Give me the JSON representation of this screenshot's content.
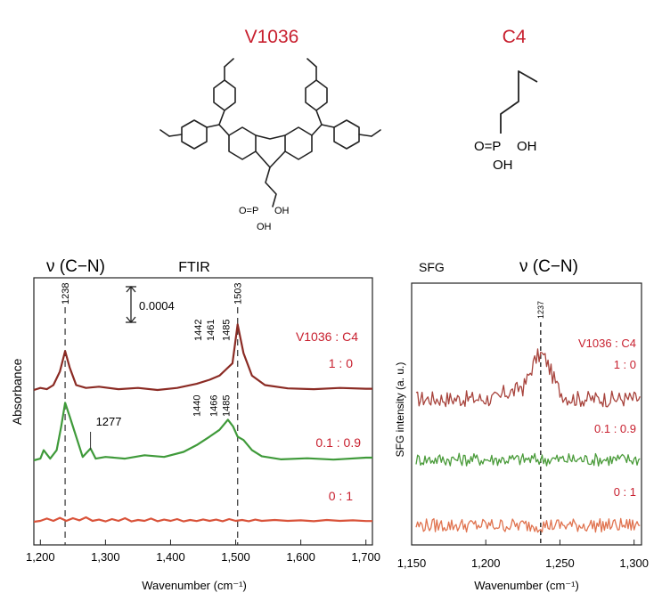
{
  "molecules": {
    "left_label": "V1036",
    "right_label": "C4",
    "left_groups": {
      "po": "O=P",
      "oh1": "OH",
      "oh2": "OH"
    },
    "right_groups": {
      "po": "O=P",
      "oh1": "OH",
      "oh2": "OH"
    }
  },
  "chart_data": [
    {
      "type": "line",
      "title": "FTIR",
      "mode_label": "ν (C−N)",
      "xlabel": "Wavenumber (cm⁻¹)",
      "ylabel": "Absorbance",
      "xlim": [
        1190,
        1710
      ],
      "x_ticks": [
        "1,200",
        "1,300",
        "1,400",
        "1,500",
        "1,600",
        "1,700"
      ],
      "x_tick_values": [
        1200,
        1300,
        1400,
        1500,
        1600,
        1700
      ],
      "scale_bar_label": "0.0004",
      "legend_header": "V1036 : C4",
      "grid": false,
      "colors": {
        "1:0": "#8b2b24",
        "0.1:0.9": "#3f9a3a",
        "0:1": "#d9533a"
      },
      "series": [
        {
          "name": "1 : 0",
          "x": [
            1190,
            1200,
            1210,
            1220,
            1230,
            1238,
            1245,
            1255,
            1270,
            1290,
            1320,
            1350,
            1380,
            1410,
            1440,
            1460,
            1475,
            1485,
            1495,
            1503,
            1512,
            1525,
            1545,
            1580,
            1620,
            1660,
            1700,
            1710
          ],
          "y": [
            0.0,
            0.05,
            0.02,
            0.12,
            0.45,
            0.95,
            0.55,
            0.12,
            0.05,
            0.08,
            0.02,
            0.05,
            0.0,
            0.05,
            0.15,
            0.25,
            0.35,
            0.5,
            0.65,
            1.6,
            0.9,
            0.35,
            0.12,
            0.04,
            0.02,
            0.05,
            0.03,
            0.03
          ]
        },
        {
          "name": "0.1 : 0.9",
          "x": [
            1190,
            1200,
            1205,
            1215,
            1225,
            1232,
            1238,
            1245,
            1255,
            1265,
            1277,
            1285,
            1300,
            1330,
            1360,
            1390,
            1420,
            1440,
            1460,
            1475,
            1488,
            1496,
            1503,
            1512,
            1525,
            1540,
            1570,
            1610,
            1650,
            1700,
            1710
          ],
          "y": [
            0.0,
            0.05,
            0.3,
            0.05,
            0.3,
            1.0,
            1.7,
            1.3,
            0.7,
            0.1,
            0.35,
            0.05,
            0.1,
            0.05,
            0.15,
            0.1,
            0.25,
            0.45,
            0.7,
            0.9,
            1.2,
            1.0,
            0.7,
            0.6,
            0.3,
            0.12,
            0.03,
            0.06,
            0.02,
            0.08,
            0.08
          ]
        },
        {
          "name": "0 : 1",
          "x": [
            1190,
            1200,
            1210,
            1220,
            1230,
            1240,
            1250,
            1260,
            1270,
            1280,
            1290,
            1300,
            1310,
            1320,
            1330,
            1340,
            1350,
            1360,
            1370,
            1380,
            1390,
            1400,
            1410,
            1420,
            1430,
            1440,
            1450,
            1460,
            1470,
            1480,
            1490,
            1500,
            1510,
            1520,
            1530,
            1540,
            1560,
            1580,
            1600,
            1620,
            1640,
            1660,
            1680,
            1700,
            1710
          ],
          "y": [
            0.0,
            0.05,
            0.18,
            0.05,
            0.22,
            0.05,
            0.2,
            0.08,
            0.25,
            0.05,
            0.12,
            0.02,
            0.15,
            0.05,
            0.2,
            0.02,
            0.1,
            0.05,
            0.18,
            0.03,
            0.12,
            0.05,
            0.15,
            0.02,
            0.1,
            0.04,
            0.13,
            0.05,
            0.12,
            0.03,
            0.15,
            0.05,
            0.1,
            0.03,
            0.12,
            0.05,
            0.1,
            0.05,
            0.08,
            0.03,
            0.1,
            0.05,
            0.08,
            0.04,
            0.04
          ]
        }
      ],
      "peak_annotations": [
        {
          "x": 1238,
          "label": "1238",
          "series": "1 : 0"
        },
        {
          "x": 1442,
          "label": "1442",
          "series": "1 : 0"
        },
        {
          "x": 1461,
          "label": "1461",
          "series": "1 : 0"
        },
        {
          "x": 1485,
          "label": "1485",
          "series": "1 : 0"
        },
        {
          "x": 1503,
          "label": "1503",
          "series": "1 : 0"
        },
        {
          "x": 1277,
          "label": "1277",
          "series": "0.1 : 0.9"
        },
        {
          "x": 1440,
          "label": "1440",
          "series": "0.1 : 0.9"
        },
        {
          "x": 1466,
          "label": "1466",
          "series": "0.1 : 0.9"
        },
        {
          "x": 1485,
          "label": "1485",
          "series": "0.1 : 0.9"
        }
      ],
      "dashed_lines_x": [
        1238,
        1503
      ]
    },
    {
      "type": "line",
      "title": "SFG",
      "mode_label": "ν (C−N)",
      "xlabel": "Wavenumber (cm⁻¹)",
      "ylabel": "SFG intensity (a. u.)",
      "xlim": [
        1150,
        1305
      ],
      "x_ticks": [
        "1,150",
        "1,200",
        "1,250",
        "1,300"
      ],
      "x_tick_values": [
        1150,
        1200,
        1250,
        1300
      ],
      "legend_header": "V1036 : C4",
      "grid": false,
      "colors": {
        "1:0": "#a8443d",
        "0.1:0.9": "#4a9b3a",
        "0:1": "#e0734f"
      },
      "series": [
        {
          "name": "1 : 0",
          "peak_x": 1237,
          "baseline": 0.0,
          "peak_height": 1.9,
          "peak_width": 10,
          "noise": 0.35
        },
        {
          "name": "0.1 : 0.9",
          "baseline": 0.0,
          "noise": 0.28
        },
        {
          "name": "0 : 1",
          "baseline": 0.0,
          "noise": 0.3
        }
      ],
      "peak_annotations": [
        {
          "x": 1237,
          "label": "1237",
          "series": "1 : 0"
        }
      ],
      "dashed_lines_x": [
        1237
      ]
    }
  ]
}
